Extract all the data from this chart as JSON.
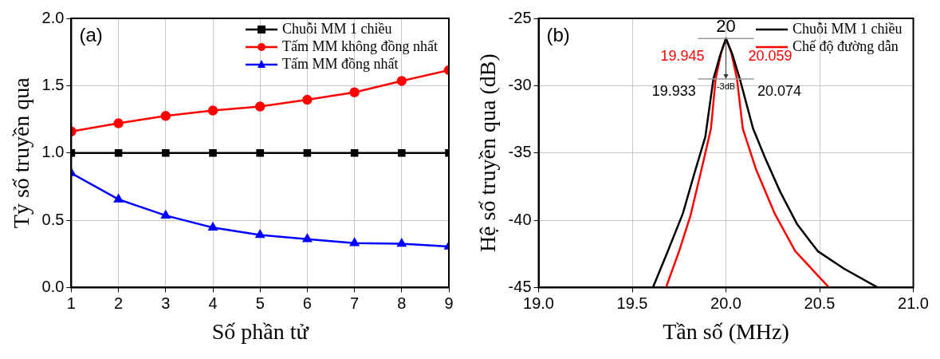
{
  "chart_data": [
    {
      "type": "line",
      "x": [
        1,
        2,
        3,
        4,
        5,
        6,
        7,
        8,
        9
      ],
      "xlabel": "Số phần tử",
      "ylabel": "Tỷ số truyền qua",
      "xlim": [
        1,
        9
      ],
      "xticks": [
        1,
        2,
        3,
        4,
        5,
        6,
        7,
        8,
        9
      ],
      "ylim": [
        0,
        2
      ],
      "yticks": [
        {
          "value": 0,
          "label": "0.0"
        },
        0.5,
        {
          "value": 1,
          "label": "1.0"
        },
        1.5,
        {
          "value": 2,
          "label": "2.0"
        }
      ],
      "grid": true,
      "legend": "top right",
      "line_style": "solid",
      "annotations": [
        "(a)"
      ],
      "series": [
        {
          "name": "Chuỗi MM 1 chiều",
          "color": "#000000",
          "marker": "square",
          "values": [
            1,
            1,
            1,
            1,
            1,
            1,
            1,
            1,
            1
          ]
        },
        {
          "name": "Tấm MM không đồng nhất",
          "color": "#ff0000",
          "marker": "circle",
          "values": [
            1.16,
            1.22,
            1.275,
            1.315,
            1.345,
            1.395,
            1.45,
            1.535,
            1.615
          ]
        },
        {
          "name": "Tấm MM đồng nhất",
          "color": "#0000ff",
          "marker": "triangle",
          "values": [
            0.85,
            0.655,
            0.535,
            0.445,
            0.39,
            0.36,
            0.33,
            0.325,
            0.305
          ]
        }
      ]
    },
    {
      "type": "line",
      "xlabel": "Tần số (MHz)",
      "ylabel": "Hệ số truyền qua (dB)",
      "xlim": [
        19,
        21
      ],
      "xticks": [
        {
          "value": 19,
          "label": "19.0"
        },
        19.5,
        {
          "value": 20,
          "label": "20.0"
        },
        20.5,
        {
          "value": 21,
          "label": "21.0"
        }
      ],
      "ylim": [
        -45,
        -25
      ],
      "yticks": [
        -45,
        -40,
        -35,
        -30,
        -25
      ],
      "grid": true,
      "legend": "top right",
      "marker": "none",
      "line_style": "solid",
      "ref_lines": [
        {
          "axis": "y",
          "value": -26.5,
          "color": "#999999"
        },
        {
          "axis": "y",
          "value": -29.5,
          "color": "#999999"
        }
      ],
      "annotations": [
        "(b)",
        {
          "text": "20",
          "x": 20,
          "y": -26.5
        },
        {
          "text": "19.945",
          "x": 19.945,
          "y": -29.5
        },
        {
          "text": "20.059",
          "x": 20.059,
          "y": -29.5
        },
        {
          "text": "19.933",
          "x": 19.933,
          "y": -29.5
        },
        {
          "text": "20.074",
          "x": 20.074,
          "y": -29.5
        },
        {
          "text": "-3dB",
          "x": 20,
          "y": -29.5
        }
      ],
      "series": [
        {
          "name": "Chuỗi MM 1 chiều",
          "color": "#000000",
          "x": [
            19.61,
            19.69,
            19.77,
            19.83,
            19.89,
            19.933,
            19.97,
            20,
            20.035,
            20.074,
            20.145,
            20.21,
            20.29,
            20.38,
            20.49,
            20.63,
            20.81
          ],
          "values": [
            -45,
            -42.3,
            -39.5,
            -36.6,
            -33.8,
            -29.5,
            -27.7,
            -26.5,
            -27.7,
            -29.5,
            -33.2,
            -35.4,
            -37.9,
            -40.3,
            -42.3,
            -43.6,
            -45
          ]
        },
        {
          "name": "Chế độ đường dẫn",
          "color": "#ff0000",
          "x": [
            19.68,
            19.75,
            19.81,
            19.87,
            19.92,
            19.945,
            19.975,
            20,
            20.028,
            20.059,
            20.09,
            20.16,
            20.26,
            20.37,
            20.55
          ],
          "values": [
            -45,
            -42.3,
            -39.7,
            -36.2,
            -33.2,
            -29.5,
            -27.5,
            -26.5,
            -27.5,
            -29.5,
            -33.2,
            -36.2,
            -39.5,
            -42.3,
            -45
          ]
        }
      ]
    }
  ]
}
